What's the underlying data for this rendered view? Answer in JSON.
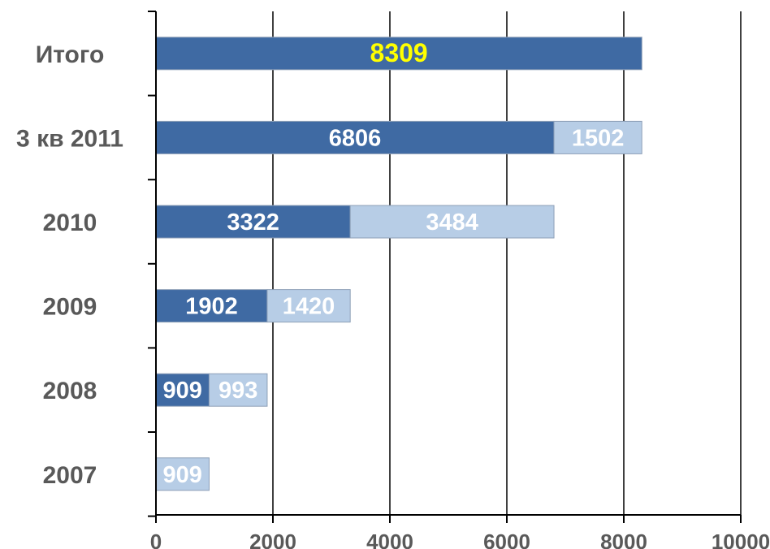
{
  "chart_data": {
    "type": "bar",
    "orientation": "horizontal",
    "stacked": true,
    "categories": [
      "Итого",
      "3 кв 2011",
      "2010",
      "2009",
      "2008",
      "2007"
    ],
    "series": [
      {
        "color": "#3f6aa3",
        "values": [
          8309,
          6806,
          3322,
          1902,
          909,
          0
        ],
        "labels": [
          "8309",
          "6806",
          "3322",
          "1902",
          "909",
          ""
        ]
      },
      {
        "color": "#b7cde6",
        "values": [
          0,
          1502,
          3484,
          1420,
          993,
          909
        ],
        "labels": [
          "",
          "1502",
          "3484",
          "1420",
          "993",
          "909"
        ]
      }
    ],
    "total_label_color": "#ffff00",
    "xlim": [
      0,
      10000
    ],
    "x_ticks": [
      0,
      2000,
      4000,
      6000,
      8000,
      10000
    ],
    "x_tick_labels": [
      "0",
      "2000",
      "4000",
      "6000",
      "8000",
      "10000"
    ],
    "grid": "vertical",
    "title": "",
    "xlabel": "",
    "ylabel": ""
  }
}
